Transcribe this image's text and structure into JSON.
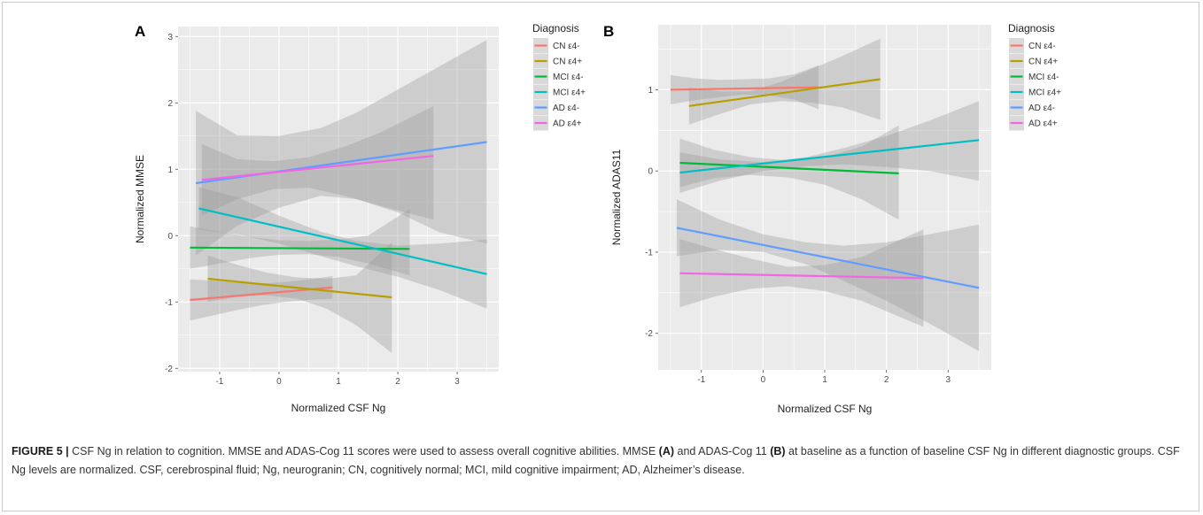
{
  "caption": {
    "label": "FIGURE 5 |",
    "text_1": " CSF Ng in relation to cognition. MMSE and ADAS-Cog 11 scores were used to assess overall cognitive abilities. MMSE ",
    "ref_a": "(A)",
    "text_2": " and ADAS-Cog 11 ",
    "ref_b": "(B)",
    "text_3": " at baseline as a function of baseline CSF Ng in different diagnostic groups. CSF Ng levels are normalized. CSF, cerebrospinal fluid; Ng, neurogranin; CN, cognitively normal; MCI, mild cognitive impairment; AD, Alzheimer’s disease."
  },
  "colors": {
    "CN ε4-": "#f8766d",
    "CN ε4+": "#b79f00",
    "MCI ε4-": "#00ba38",
    "MCI ε4+": "#00bfc4",
    "AD ε4-": "#619cff",
    "AD ε4+": "#f564e3",
    "panel_bg": "#ebebeb",
    "grid": "#ffffff",
    "ribbon": "#999999"
  },
  "chart_data": [
    {
      "type": "line",
      "panel_label": "A",
      "xlabel": "Normalized CSF Ng",
      "ylabel": "Normalized MMSE",
      "xlim": [
        -1.7,
        3.7
      ],
      "ylim": [
        -2.05,
        3.15
      ],
      "xticks": [
        -1,
        0,
        1,
        2,
        3
      ],
      "yticks": [
        -2,
        -1,
        0,
        1,
        2,
        3
      ],
      "grid": true,
      "legend": {
        "title": "Diagnosis",
        "placement": "right"
      },
      "series": [
        {
          "name": "CN ε4-",
          "x": [
            -1.5,
            0.9
          ],
          "y": [
            -0.97,
            -0.78
          ],
          "ci_x": [
            -1.5,
            -1.1,
            -0.7,
            -0.3,
            0.1,
            0.5,
            0.9
          ],
          "ci_lo": [
            -1.28,
            -1.2,
            -1.12,
            -1.05,
            -1.0,
            -0.97,
            -0.95
          ],
          "ci_hi": [
            -0.66,
            -0.68,
            -0.71,
            -0.72,
            -0.7,
            -0.66,
            -0.61
          ]
        },
        {
          "name": "CN ε4+",
          "x": [
            -1.2,
            1.9
          ],
          "y": [
            -0.65,
            -0.93
          ],
          "ci_x": [
            -1.2,
            -0.7,
            -0.2,
            0.3,
            0.8,
            1.3,
            1.9
          ],
          "ci_lo": [
            -1.0,
            -0.92,
            -0.9,
            -0.95,
            -1.1,
            -1.35,
            -1.77
          ],
          "ci_hi": [
            -0.3,
            -0.44,
            -0.56,
            -0.63,
            -0.65,
            -0.6,
            -0.1
          ]
        },
        {
          "name": "MCI ε4-",
          "x": [
            -1.5,
            2.2
          ],
          "y": [
            -0.18,
            -0.2
          ],
          "ci_x": [
            -1.5,
            -1.0,
            -0.5,
            0.0,
            0.5,
            1.0,
            1.5,
            2.2
          ],
          "ci_lo": [
            -0.5,
            -0.42,
            -0.34,
            -0.29,
            -0.28,
            -0.32,
            -0.42,
            -0.6
          ],
          "ci_hi": [
            0.14,
            0.06,
            -0.02,
            -0.07,
            -0.08,
            -0.06,
            0.0,
            0.4
          ]
        },
        {
          "name": "MCI ε4+",
          "x": [
            -1.35,
            3.5
          ],
          "y": [
            0.41,
            -0.58
          ],
          "ci_x": [
            -1.35,
            -0.7,
            0.0,
            0.7,
            1.3,
            2.0,
            2.7,
            3.5
          ],
          "ci_lo": [
            0.09,
            0.02,
            -0.12,
            -0.31,
            -0.46,
            -0.62,
            -0.82,
            -1.1
          ],
          "ci_hi": [
            0.73,
            0.58,
            0.3,
            0.06,
            -0.08,
            -0.15,
            -0.12,
            -0.06
          ]
        },
        {
          "name": "AD ε4-",
          "x": [
            -1.4,
            3.5
          ],
          "y": [
            0.79,
            1.41
          ],
          "ci_x": [
            -1.4,
            -0.7,
            0.0,
            0.7,
            1.3,
            2.0,
            2.7,
            3.5
          ],
          "ci_lo": [
            -0.3,
            0.15,
            0.42,
            0.6,
            0.55,
            0.35,
            0.05,
            -0.12
          ],
          "ci_hi": [
            1.88,
            1.51,
            1.5,
            1.62,
            1.85,
            2.2,
            2.55,
            2.95
          ]
        },
        {
          "name": "AD ε4+",
          "x": [
            -1.3,
            2.6
          ],
          "y": [
            0.84,
            1.2
          ],
          "ci_x": [
            -1.3,
            -0.7,
            -0.1,
            0.5,
            1.1,
            1.7,
            2.6
          ],
          "ci_lo": [
            0.3,
            0.55,
            0.7,
            0.72,
            0.6,
            0.45,
            0.24
          ],
          "ci_hi": [
            1.38,
            1.15,
            1.12,
            1.18,
            1.34,
            1.55,
            1.95
          ]
        }
      ]
    },
    {
      "type": "line",
      "panel_label": "B",
      "xlabel": "Normalized CSF Ng",
      "ylabel": "Normalized ADAS11",
      "xlim": [
        -1.7,
        3.7
      ],
      "ylim": [
        -2.45,
        1.8
      ],
      "xticks": [
        -1,
        0,
        1,
        2,
        3
      ],
      "yticks": [
        -2,
        -1,
        0,
        1
      ],
      "grid": true,
      "legend": {
        "title": "Diagnosis",
        "placement": "right"
      },
      "series": [
        {
          "name": "CN ε4-",
          "x": [
            -1.5,
            0.9
          ],
          "y": [
            1.0,
            1.03
          ],
          "ci_x": [
            -1.5,
            -1.1,
            -0.7,
            -0.3,
            0.1,
            0.5,
            0.9
          ],
          "ci_lo": [
            0.82,
            0.87,
            0.91,
            0.94,
            0.93,
            0.88,
            0.76
          ],
          "ci_hi": [
            1.18,
            1.14,
            1.12,
            1.13,
            1.14,
            1.19,
            1.3
          ]
        },
        {
          "name": "CN ε4+",
          "x": [
            -1.2,
            1.9
          ],
          "y": [
            0.8,
            1.13
          ],
          "ci_x": [
            -1.2,
            -0.7,
            -0.2,
            0.3,
            0.8,
            1.3,
            1.9
          ],
          "ci_lo": [
            0.57,
            0.7,
            0.82,
            0.86,
            0.84,
            0.78,
            0.63
          ],
          "ci_hi": [
            1.03,
            0.98,
            0.98,
            1.1,
            1.26,
            1.42,
            1.63
          ]
        },
        {
          "name": "MCI ε4-",
          "x": [
            -1.35,
            2.2
          ],
          "y": [
            0.1,
            -0.03
          ],
          "ci_x": [
            -1.35,
            -0.8,
            -0.2,
            0.4,
            1.0,
            1.6,
            2.2
          ],
          "ci_lo": [
            -0.2,
            -0.09,
            -0.05,
            -0.08,
            -0.17,
            -0.35,
            -0.6
          ],
          "ci_hi": [
            0.4,
            0.26,
            0.17,
            0.13,
            0.17,
            0.3,
            0.56
          ]
        },
        {
          "name": "MCI ε4+",
          "x": [
            -1.35,
            3.5
          ],
          "y": [
            -0.02,
            0.38
          ],
          "ci_x": [
            -1.35,
            -0.7,
            0.0,
            0.7,
            1.3,
            2.0,
            2.7,
            3.5
          ],
          "ci_lo": [
            -0.27,
            -0.12,
            0.0,
            0.06,
            0.08,
            0.05,
            0.0,
            -0.12
          ],
          "ci_hi": [
            0.23,
            0.14,
            0.11,
            0.17,
            0.28,
            0.43,
            0.62,
            0.86
          ]
        },
        {
          "name": "AD ε4-",
          "x": [
            -1.4,
            3.5
          ],
          "y": [
            -0.7,
            -1.44
          ],
          "ci_x": [
            -1.4,
            -0.7,
            0.0,
            0.7,
            1.3,
            2.0,
            2.7,
            3.5
          ],
          "ci_lo": [
            -1.05,
            -0.97,
            -1.0,
            -1.15,
            -1.35,
            -1.6,
            -1.88,
            -2.22
          ],
          "ci_hi": [
            -0.35,
            -0.6,
            -0.78,
            -0.88,
            -0.92,
            -0.88,
            -0.78,
            -0.66
          ]
        },
        {
          "name": "AD ε4+",
          "x": [
            -1.35,
            2.6
          ],
          "y": [
            -1.26,
            -1.32
          ],
          "ci_x": [
            -1.35,
            -0.8,
            -0.2,
            0.4,
            1.0,
            1.6,
            2.6
          ],
          "ci_lo": [
            -1.68,
            -1.55,
            -1.45,
            -1.42,
            -1.48,
            -1.6,
            -1.92
          ],
          "ci_hi": [
            -0.84,
            -0.96,
            -1.08,
            -1.18,
            -1.16,
            -1.06,
            -0.72
          ]
        }
      ]
    }
  ]
}
